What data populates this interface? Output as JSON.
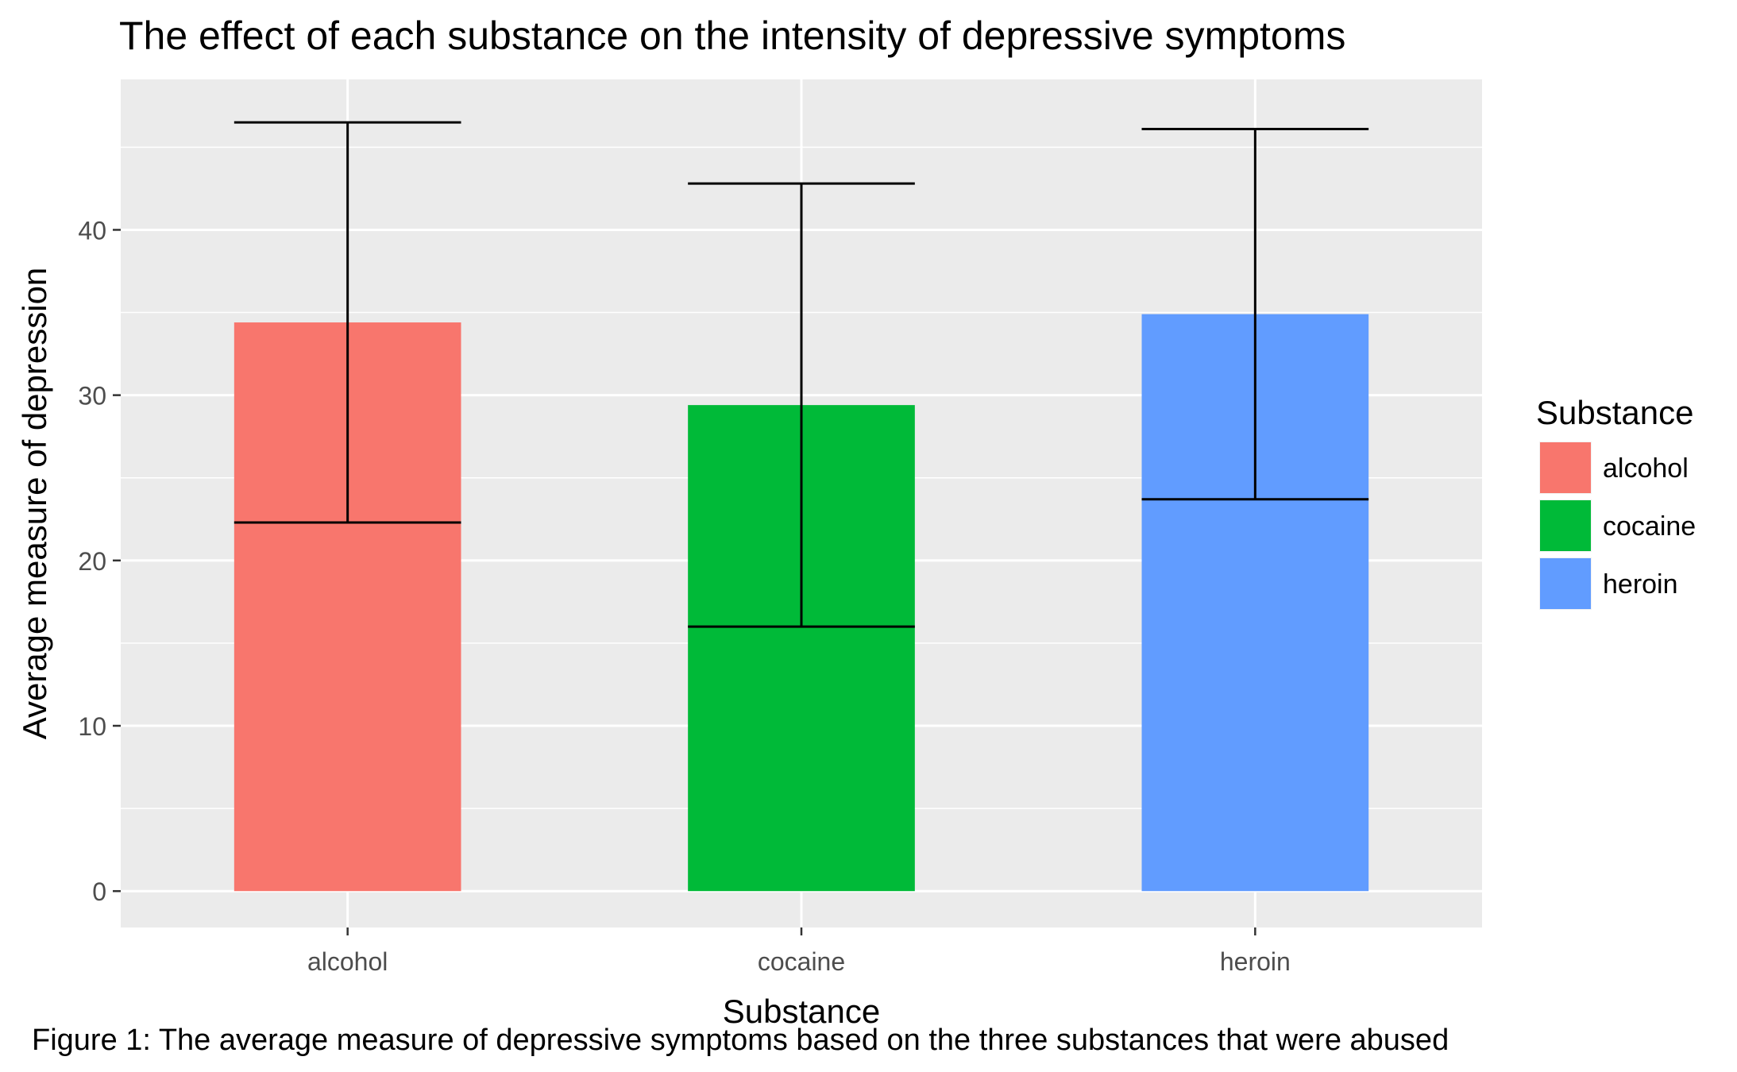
{
  "chart_data": {
    "type": "bar",
    "title": "The effect of each substance on the intensity of depressive symptoms",
    "xlabel": "Substance",
    "ylabel": "Average measure of depression",
    "caption": "Figure 1: The average measure of depressive symptoms based on the three substances that were abused",
    "categories": [
      "alcohol",
      "cocaine",
      "heroin"
    ],
    "values": [
      34.4,
      29.4,
      34.9
    ],
    "error_bars": [
      {
        "low": 22.3,
        "high": 46.5
      },
      {
        "low": 16.0,
        "high": 42.8
      },
      {
        "low": 23.7,
        "high": 46.1
      }
    ],
    "colors": [
      "#F8766D",
      "#00BA38",
      "#619CFF"
    ],
    "ylim": [
      -2.2,
      49.1
    ],
    "yticks": [
      0,
      10,
      20,
      30,
      40
    ],
    "grid": true,
    "panel_background": "#EBEBEB",
    "legend": {
      "title": "Substance",
      "placement": "right",
      "entries": [
        "alcohol",
        "cocaine",
        "heroin"
      ]
    }
  }
}
